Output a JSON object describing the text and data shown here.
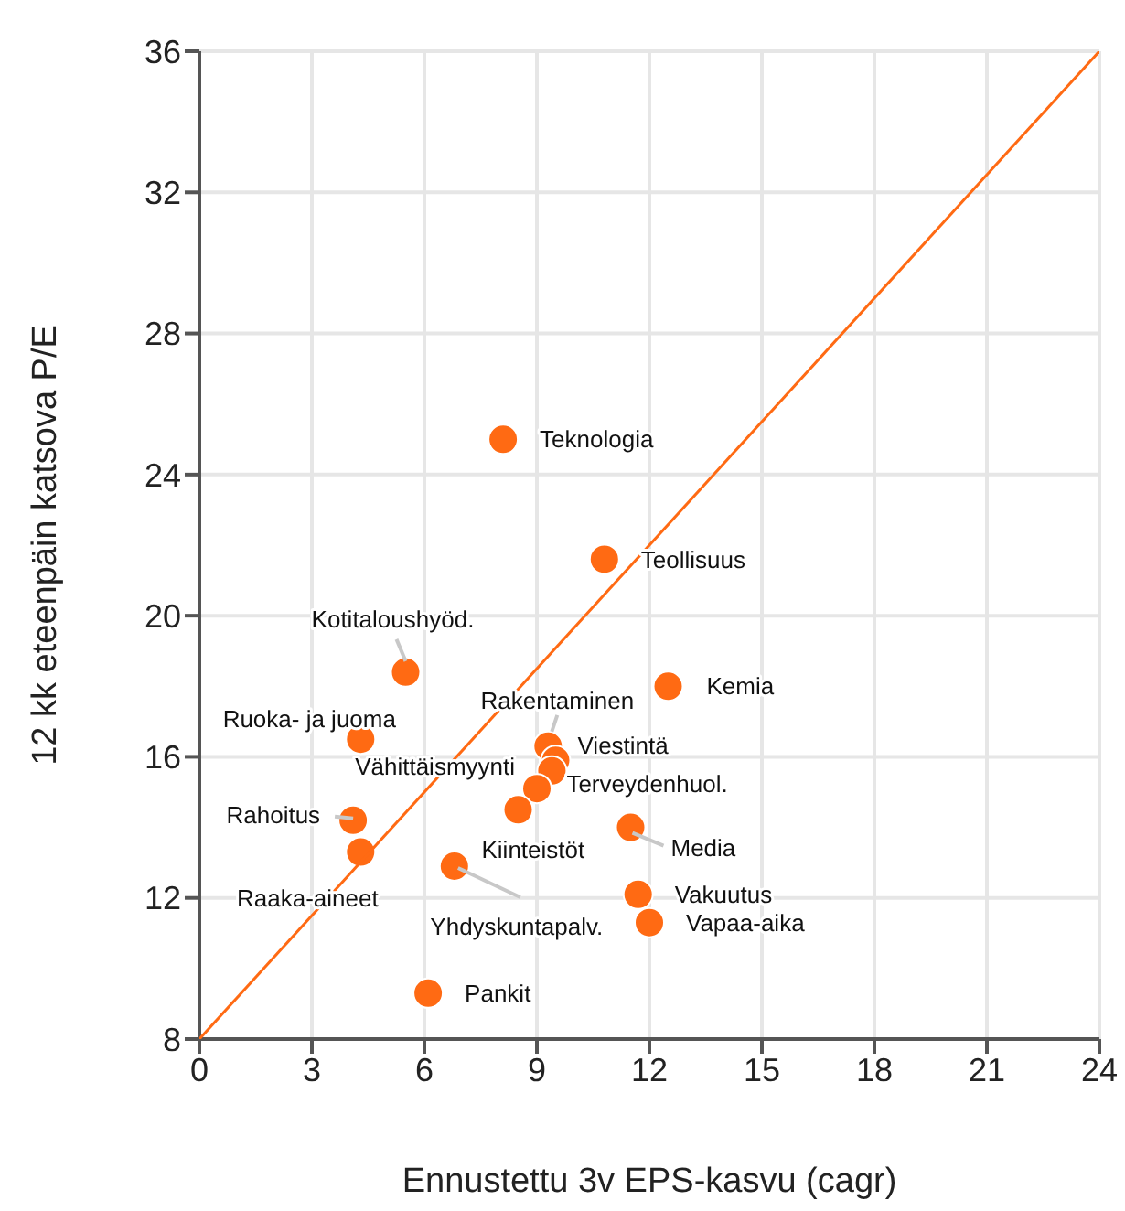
{
  "chart_data": {
    "type": "scatter",
    "xlabel": "Ennustettu 3v EPS-kasvu (cagr)",
    "ylabel": "12 kk eteenpäin katsova P/E",
    "series": [
      {
        "marker": "circle",
        "color": "#ff6a13",
        "x": [
          8.1,
          10.8,
          5.5,
          12.5,
          4.3,
          9.3,
          9.5,
          9.4,
          9.0,
          8.5,
          4.1,
          4.3,
          6.8,
          11.5,
          11.7,
          12.0,
          6.1
        ],
        "values": [
          25.0,
          21.6,
          18.4,
          18.0,
          16.5,
          16.3,
          15.9,
          15.6,
          15.1,
          14.5,
          14.2,
          13.3,
          12.9,
          14.0,
          12.1,
          11.3,
          9.3
        ]
      },
      {
        "type": "line",
        "marker": "none",
        "color": "#ff6a13",
        "x": [
          0,
          24
        ],
        "values": [
          8,
          36
        ]
      }
    ],
    "annotations": [
      {
        "text": "Teknologia",
        "x": 8.1,
        "y": 25.0
      },
      {
        "text": "Teollisuus",
        "x": 10.8,
        "y": 21.6
      },
      {
        "text": "Kotitaloushyöd.",
        "x": 5.5,
        "y": 18.4
      },
      {
        "text": "Kemia",
        "x": 12.5,
        "y": 18.0
      },
      {
        "text": "Ruoka- ja juoma",
        "x": 4.3,
        "y": 16.5
      },
      {
        "text": "Rakentaminen",
        "x": 9.3,
        "y": 16.3
      },
      {
        "text": "Viestintä",
        "x": 9.5,
        "y": 15.9
      },
      {
        "text": "Terveydenhuol.",
        "x": 9.4,
        "y": 15.6
      },
      {
        "text": "Vähittäismyynti",
        "x": 9.0,
        "y": 15.1
      },
      {
        "text": "Kiinteistöt",
        "x": 8.5,
        "y": 14.5
      },
      {
        "text": "Rahoitus",
        "x": 4.1,
        "y": 14.2
      },
      {
        "text": "Raaka-aineet",
        "x": 4.3,
        "y": 13.3
      },
      {
        "text": "Yhdyskuntapalv.",
        "x": 6.8,
        "y": 12.9
      },
      {
        "text": "Media",
        "x": 11.5,
        "y": 14.0
      },
      {
        "text": "Vakuutus",
        "x": 11.7,
        "y": 12.1
      },
      {
        "text": "Vapaa-aika",
        "x": 12.0,
        "y": 11.3
      },
      {
        "text": "Pankit",
        "x": 6.1,
        "y": 9.3
      }
    ],
    "xlim": [
      0,
      24
    ],
    "xticks": [
      0,
      3,
      6,
      9,
      12,
      15,
      18,
      21,
      24
    ],
    "ylim": [
      8,
      36
    ],
    "yticks": [
      8,
      12,
      16,
      20,
      24,
      28,
      32,
      36
    ],
    "grid": true
  }
}
